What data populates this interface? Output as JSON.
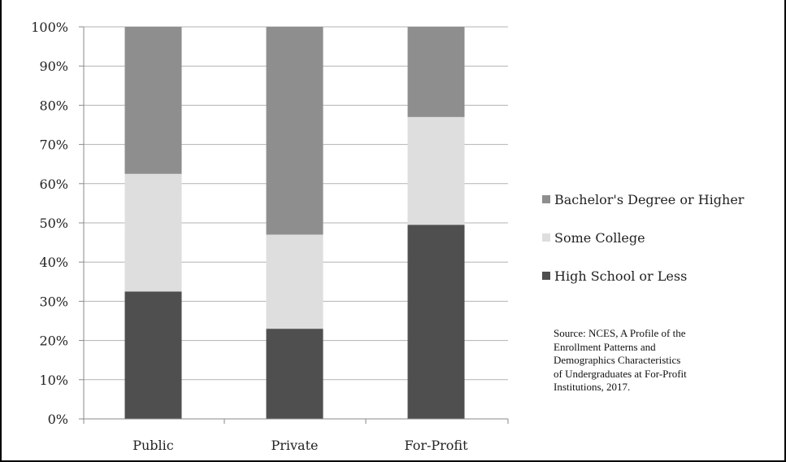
{
  "chart_data": {
    "type": "bar",
    "stacked": true,
    "title": "",
    "xlabel": "",
    "ylabel": "",
    "ylim": [
      0,
      100
    ],
    "y_ticks": [
      "0%",
      "10%",
      "20%",
      "30%",
      "40%",
      "50%",
      "60%",
      "70%",
      "80%",
      "90%",
      "100%"
    ],
    "categories": [
      "Public",
      "Private",
      "For-Profit"
    ],
    "series": [
      {
        "name": "High School or Less",
        "values": [
          32.5,
          23,
          49.5
        ],
        "color": "#4f4f4f"
      },
      {
        "name": "Some College",
        "values": [
          30,
          24,
          27.5
        ],
        "color": "#dedede"
      },
      {
        "name": "Bachelor's Degree or Higher",
        "values": [
          37.5,
          53,
          23
        ],
        "color": "#8e8e8e"
      }
    ],
    "legend_order": [
      2,
      1,
      0
    ],
    "legend_placement": "right",
    "grid": true,
    "source_note": {
      "lines": [
        "Source: NCES, A Profile of the",
        "Enrollment Patterns and",
        "Demographics Characteristics",
        "of Undergraduates at For-Profit",
        "Institutions, 2017."
      ]
    }
  }
}
